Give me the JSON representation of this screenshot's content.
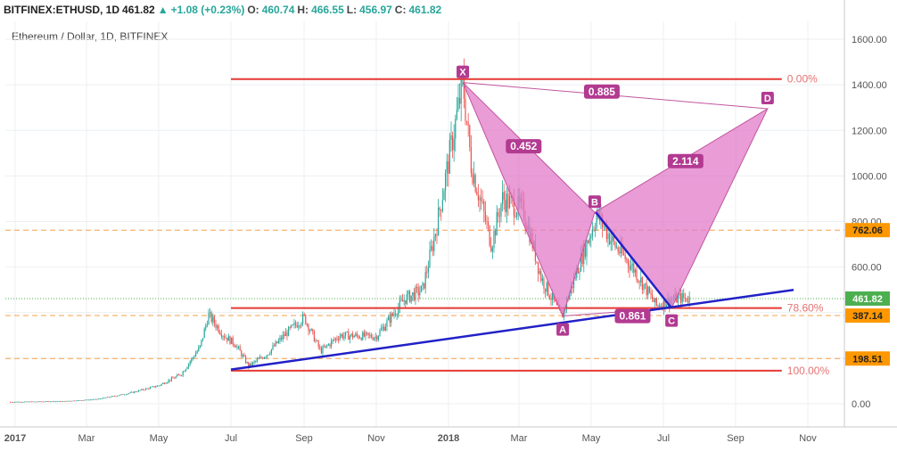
{
  "header": {
    "symbol": "BITFINEX:ETHUSD, 1D",
    "last": "461.82",
    "change": "+1.08 (+0.23%)",
    "open_label": "O:",
    "open": "460.74",
    "high_label": "H:",
    "high": "466.55",
    "low_label": "L:",
    "low": "456.97",
    "close_label": "C:",
    "close": "461.82"
  },
  "chart_data": {
    "type": "candlestick",
    "title": "Ethereum / Dollar, 1D, BITFINEX",
    "ylim": [
      -80,
      1650
    ],
    "y_ticks": [
      0,
      200,
      400,
      600,
      800,
      1000,
      1200,
      1400,
      1600
    ],
    "y_tick_labels": [
      "0.00",
      "200.00",
      "400.00",
      "600.00",
      "800.00",
      "1000.00",
      "1200.00",
      "1400.00",
      "1600.00"
    ],
    "x_ticks": [
      {
        "label": "2017",
        "date": "2017-01-01"
      },
      {
        "label": "Mar",
        "date": "2017-03-01"
      },
      {
        "label": "May",
        "date": "2017-05-01"
      },
      {
        "label": "Jul",
        "date": "2017-07-01"
      },
      {
        "label": "Sep",
        "date": "2017-09-01"
      },
      {
        "label": "Nov",
        "date": "2017-11-01"
      },
      {
        "label": "2018",
        "date": "2018-01-01"
      },
      {
        "label": "Mar",
        "date": "2018-03-01"
      },
      {
        "label": "May",
        "date": "2018-05-01"
      },
      {
        "label": "Jul",
        "date": "2018-07-01"
      },
      {
        "label": "Sep",
        "date": "2018-09-01"
      },
      {
        "label": "Nov",
        "date": "2018-11-01"
      }
    ],
    "price_path": [
      {
        "date": "2016-12-28",
        "price": 8
      },
      {
        "date": "2017-02-10",
        "price": 11
      },
      {
        "date": "2017-03-10",
        "price": 20
      },
      {
        "date": "2017-04-05",
        "price": 45
      },
      {
        "date": "2017-05-01",
        "price": 80
      },
      {
        "date": "2017-05-20",
        "price": 130
      },
      {
        "date": "2017-06-05",
        "price": 250
      },
      {
        "date": "2017-06-12",
        "price": 390
      },
      {
        "date": "2017-06-25",
        "price": 300
      },
      {
        "date": "2017-07-05",
        "price": 260
      },
      {
        "date": "2017-07-16",
        "price": 165
      },
      {
        "date": "2017-08-01",
        "price": 220
      },
      {
        "date": "2017-08-15",
        "price": 300
      },
      {
        "date": "2017-09-01",
        "price": 380
      },
      {
        "date": "2017-09-15",
        "price": 230
      },
      {
        "date": "2017-10-01",
        "price": 300
      },
      {
        "date": "2017-11-01",
        "price": 295
      },
      {
        "date": "2017-11-25",
        "price": 460
      },
      {
        "date": "2017-12-10",
        "price": 500
      },
      {
        "date": "2017-12-22",
        "price": 780
      },
      {
        "date": "2018-01-13",
        "price": 1410
      },
      {
        "date": "2018-01-20",
        "price": 1050
      },
      {
        "date": "2018-02-06",
        "price": 700
      },
      {
        "date": "2018-02-15",
        "price": 900
      },
      {
        "date": "2018-03-05",
        "price": 850
      },
      {
        "date": "2018-03-20",
        "price": 550
      },
      {
        "date": "2018-04-06",
        "price": 380
      },
      {
        "date": "2018-04-20",
        "price": 600
      },
      {
        "date": "2018-05-06",
        "price": 830
      },
      {
        "date": "2018-05-20",
        "price": 700
      },
      {
        "date": "2018-06-05",
        "price": 600
      },
      {
        "date": "2018-06-25",
        "price": 430
      },
      {
        "date": "2018-07-05",
        "price": 450
      },
      {
        "date": "2018-07-15",
        "price": 465
      },
      {
        "date": "2018-07-24",
        "price": 461.82
      }
    ],
    "current_price": 461.82,
    "price_labels": [
      {
        "text": "762.06",
        "price": 762.06,
        "color": "#ff9800"
      },
      {
        "text": "387.14",
        "price": 387.14,
        "color": "#ff9800"
      },
      {
        "text": "198.51",
        "price": 198.51,
        "color": "#ff9800"
      },
      {
        "text": "461.82",
        "price": 461.82,
        "color": "#4caf50"
      }
    ],
    "horizontal_dashed_levels": [
      762.06,
      387.14,
      198.51
    ],
    "fib_levels": [
      {
        "price": 1425,
        "label": "0.00%",
        "start": "2017-07-01",
        "end": "2018-10-10"
      },
      {
        "price": 420,
        "label": "78.60%",
        "start": "2017-07-01",
        "end": "2018-10-10"
      },
      {
        "price": 145,
        "label": "100.00%",
        "start": "2017-07-01",
        "end": "2018-10-10"
      }
    ],
    "trendline": {
      "start": {
        "date": "2017-07-01",
        "price": 150
      },
      "end": {
        "date": "2018-10-20",
        "price": 500
      }
    },
    "bc_line": {
      "start": {
        "date": "2018-05-05",
        "price": 840
      },
      "end": {
        "date": "2018-07-08",
        "price": 420
      }
    },
    "pattern": {
      "points": [
        {
          "name": "X",
          "date": "2018-01-13",
          "price": 1410
        },
        {
          "name": "A",
          "date": "2018-04-07",
          "price": 385
        },
        {
          "name": "B",
          "date": "2018-05-04",
          "price": 840
        },
        {
          "name": "C",
          "date": "2018-07-08",
          "price": 420
        },
        {
          "name": "D",
          "date": "2018-09-28",
          "price": 1295
        }
      ],
      "ratios": [
        {
          "text": "0.452",
          "date": "2018-03-05",
          "price": 1130
        },
        {
          "text": "0.885",
          "date": "2018-05-10",
          "price": 1370
        },
        {
          "text": "0.861",
          "date": "2018-06-05",
          "price": 385
        },
        {
          "text": "2.114",
          "date": "2018-07-20",
          "price": 1065
        }
      ],
      "fill": "#e27bc8",
      "edge": "#c2559f"
    }
  }
}
